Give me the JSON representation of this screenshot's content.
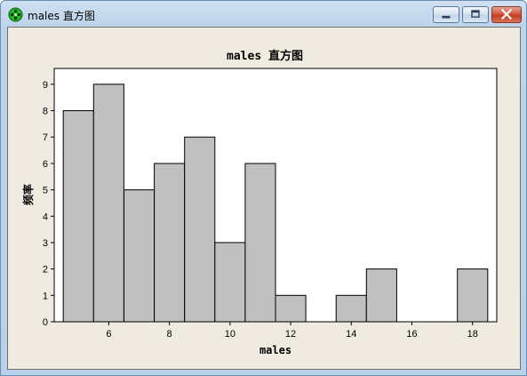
{
  "window": {
    "title": "males 直方图",
    "icon": "minitab-graph-icon",
    "controls": {
      "minimize_icon": "minimize-icon",
      "maximize_icon": "maximize-icon",
      "close_icon": "close-icon"
    }
  },
  "colors": {
    "bar_fill": "#c0c0c0",
    "bar_stroke": "#000000",
    "plot_bg": "#ffffff",
    "client_bg": "#efebe0",
    "close_button": "#c94c32"
  },
  "chart_data": {
    "type": "bar",
    "title": "males 直方图",
    "xlabel": "males",
    "ylabel": "频率",
    "bin_width": 1,
    "bin_edges": [
      4.5,
      5.5,
      6.5,
      7.5,
      8.5,
      9.5,
      10.5,
      11.5,
      12.5,
      13.5,
      14.5,
      15.5,
      16.5,
      17.5,
      18.5
    ],
    "bin_centers": [
      5,
      6,
      7,
      8,
      9,
      10,
      11,
      12,
      13,
      14,
      15,
      16,
      17,
      18
    ],
    "values": [
      8,
      9,
      5,
      6,
      7,
      3,
      6,
      1,
      0,
      1,
      2,
      0,
      0,
      2
    ],
    "xlim": [
      4.2,
      18.8
    ],
    "ylim": [
      0,
      9.6
    ],
    "xticks": [
      6,
      8,
      10,
      12,
      14,
      16,
      18
    ],
    "yticks": [
      0,
      1,
      2,
      3,
      4,
      5,
      6,
      7,
      8,
      9
    ],
    "grid": false,
    "legend": "none"
  }
}
